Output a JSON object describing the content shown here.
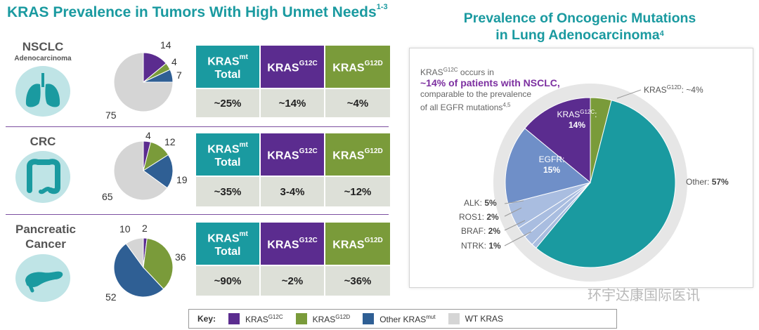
{
  "left_title": {
    "text": "KRAS Prevalence in Tumors With High Unmet Needs",
    "sup": "1-3"
  },
  "right_title": {
    "line1": "Prevalence of Oncogenic Mutations",
    "line2": "in Lung Adenocarcinoma",
    "sup": "4"
  },
  "tumors": [
    {
      "name": "NSCLC",
      "subname": "Adenocarcinoma",
      "organ_icon": "lungs-icon",
      "pie_labels": [
        "14",
        "4",
        "7",
        "75"
      ],
      "headers": {
        "total_main": "KRAS",
        "total_sup": "mt",
        "total_sub": "Total",
        "g12c_main": "KRAS",
        "g12c_sup": "G12C",
        "g12d_main": "KRAS",
        "g12d_sup": "G12D"
      },
      "values": {
        "total": "~25%",
        "g12c": "~14%",
        "g12d": "~4%"
      }
    },
    {
      "name": "CRC",
      "subname": "",
      "organ_icon": "colon-icon",
      "pie_labels": [
        "4",
        "12",
        "19",
        "65"
      ],
      "headers": {
        "total_main": "KRAS",
        "total_sup": "mt",
        "total_sub": "Total",
        "g12c_main": "KRAS",
        "g12c_sup": "G12C",
        "g12d_main": "KRAS",
        "g12d_sup": "G12D"
      },
      "values": {
        "total": "~35%",
        "g12c": "3-4%",
        "g12d": "~12%"
      }
    },
    {
      "name": "Pancreatic",
      "name2": "Cancer",
      "subname": "",
      "organ_icon": "pancreas-icon",
      "pie_labels": [
        "2",
        "36",
        "52",
        "10"
      ],
      "headers": {
        "total_main": "KRAS",
        "total_sup": "mt",
        "total_sub": "Total",
        "g12c_main": "KRAS",
        "g12c_sup": "G12C",
        "g12d_main": "KRAS",
        "g12d_sup": "G12D"
      },
      "values": {
        "total": "~90%",
        "g12c": "~2%",
        "g12d": "~36%"
      }
    }
  ],
  "key": {
    "label": "Key:",
    "items": [
      {
        "main": "KRAS",
        "sup": "G12C",
        "color": "#5b2c8f"
      },
      {
        "main": "KRAS",
        "sup": "G12D",
        "color": "#7a9b3a"
      },
      {
        "main": "Other KRAS",
        "sup": "mut",
        "color": "#2f5f94"
      },
      {
        "main": "WT KRAS",
        "sup": "",
        "color": "#d5d5d5"
      }
    ]
  },
  "note": {
    "line1_main": "KRAS",
    "line1_sup": "G12C",
    "line1_rest": " occurs in",
    "bold": "~14% of patients with NSCLC,",
    "line3": "comparable to the prevalence",
    "line4_main": "of all EGFR mutations",
    "line4_sup": "4,5"
  },
  "big_pie_labels": {
    "g12c_main": "KRAS",
    "g12c_sup": "G12C",
    "g12c_colon": ":",
    "g12c_pct": "14%",
    "g12d_main": "KRAS",
    "g12d_sup": "G12D",
    "g12d_pct": ": ~4%",
    "other_name": "Other: ",
    "other_pct": "57%",
    "egfr_name": "EGFR:",
    "egfr_pct": "15%",
    "alk_name": "ALK: ",
    "alk_pct": "5%",
    "ros1_name": "ROS1: ",
    "ros1_pct": "2%",
    "braf_name": "BRAF: ",
    "braf_pct": "2%",
    "ntrk_name": "NTRK: ",
    "ntrk_pct": "1%"
  },
  "watermark": "环宇达康国际医讯",
  "colors": {
    "g12c": "#5b2c8f",
    "g12d": "#7a9b3a",
    "other_kras": "#2f5f94",
    "wt": "#d5d5d5",
    "teal": "#1a9aa0",
    "egfr": "#6f8fc8",
    "minor": "#a9bde0"
  },
  "chart_data": [
    {
      "type": "pie",
      "title": "NSCLC Adenocarcinoma",
      "categories": [
        "KRAS G12C",
        "KRAS G12D",
        "Other KRAS mut",
        "WT KRAS"
      ],
      "values": [
        14,
        4,
        7,
        75
      ]
    },
    {
      "type": "pie",
      "title": "CRC",
      "categories": [
        "KRAS G12C",
        "KRAS G12D",
        "Other KRAS mut",
        "WT KRAS"
      ],
      "values": [
        4,
        12,
        19,
        65
      ]
    },
    {
      "type": "pie",
      "title": "Pancreatic Cancer",
      "categories": [
        "KRAS G12C",
        "KRAS G12D",
        "Other KRAS mut",
        "WT KRAS"
      ],
      "values": [
        2,
        36,
        52,
        10
      ]
    },
    {
      "type": "pie",
      "title": "Prevalence of Oncogenic Mutations in Lung Adenocarcinoma",
      "categories": [
        "KRAS G12C",
        "KRAS G12D",
        "Other",
        "NTRK",
        "BRAF",
        "ROS1",
        "ALK",
        "EGFR"
      ],
      "values": [
        14,
        4,
        57,
        1,
        2,
        2,
        5,
        15
      ]
    }
  ]
}
